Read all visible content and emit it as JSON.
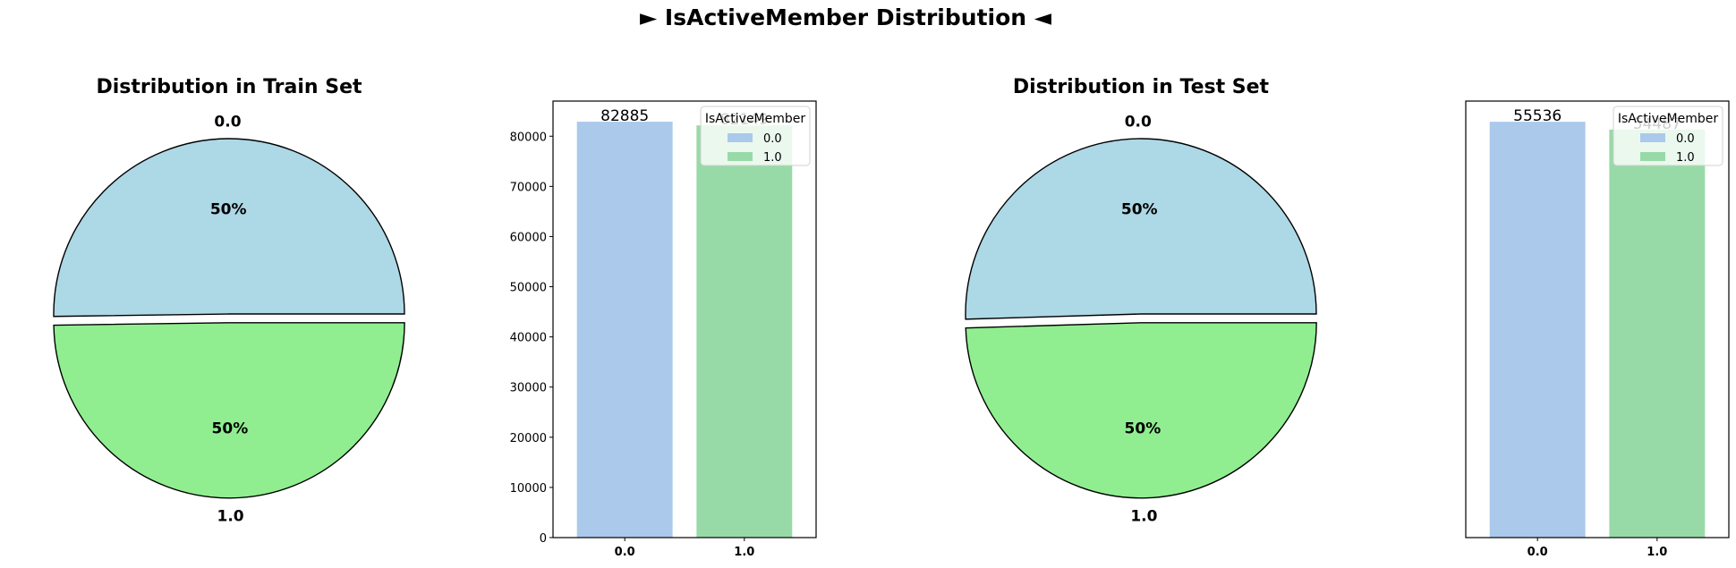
{
  "figure": {
    "suptitle": "► IsActiveMember Distribution ◄"
  },
  "chart_data": [
    {
      "type": "pie",
      "title": "Distribution in Train Set",
      "labels": [
        "0.0",
        "1.0"
      ],
      "values": [
        82885,
        82149
      ],
      "autopct_labels": [
        "50%",
        "50%"
      ],
      "colors": [
        "#add8e6",
        "#90ee90"
      ],
      "explode": [
        0,
        0.05
      ],
      "edgecolor": "#000000"
    },
    {
      "type": "bar",
      "title": "",
      "categories": [
        "0.0",
        "1.0"
      ],
      "values": [
        82885,
        82149
      ],
      "bar_labels": [
        "82885",
        "82149"
      ],
      "colors": [
        "#abc9ea",
        "#98daa7"
      ],
      "ylim": [
        0,
        87000
      ],
      "yticks": [
        0,
        10000,
        20000,
        30000,
        40000,
        50000,
        60000,
        70000,
        80000
      ],
      "show_yticks": true,
      "legend": {
        "title": "IsActiveMember",
        "entries": [
          "0.0",
          "1.0"
        ],
        "placement": "top-right"
      }
    },
    {
      "type": "pie",
      "title": "Distribution in Test Set",
      "labels": [
        "0.0",
        "1.0"
      ],
      "values": [
        55536,
        54487
      ],
      "autopct_labels": [
        "50%",
        "50%"
      ],
      "colors": [
        "#add8e6",
        "#90ee90"
      ],
      "explode": [
        0,
        0.05
      ],
      "edgecolor": "#000000"
    },
    {
      "type": "bar",
      "title": "",
      "categories": [
        "0.0",
        "1.0"
      ],
      "values": [
        55536,
        54487
      ],
      "bar_labels": [
        "55536",
        "54487"
      ],
      "colors": [
        "#abc9ea",
        "#98daa7"
      ],
      "ylim": [
        0,
        58300
      ],
      "yticks": [],
      "show_yticks": false,
      "legend": {
        "title": "IsActiveMember",
        "entries": [
          "0.0",
          "1.0"
        ],
        "placement": "top-right"
      }
    }
  ]
}
